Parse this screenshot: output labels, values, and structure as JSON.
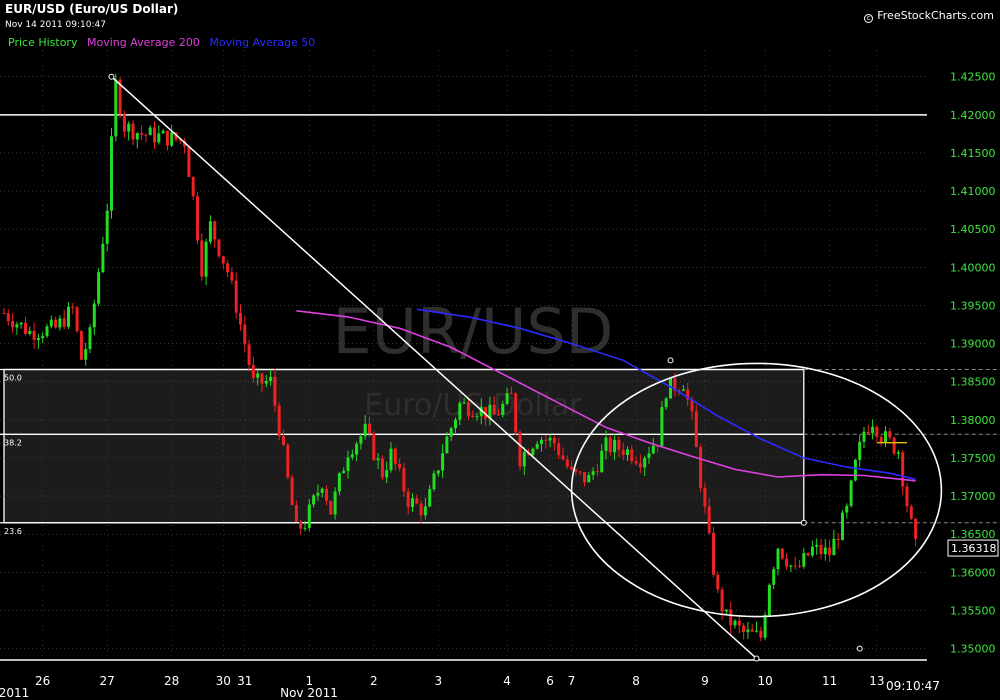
{
  "header": {
    "title": "EUR/USD (Euro/US Dollar)",
    "timestamp": "Nov 14 2011 09:10:47",
    "brand": "FreeStockCharts.com",
    "legend": [
      {
        "label": "Price History",
        "color": "#3ee63e"
      },
      {
        "label": "Moving Average 200",
        "color": "#e040e0"
      },
      {
        "label": "Moving Average 50",
        "color": "#2b2bff"
      }
    ]
  },
  "watermark": {
    "symbol": "EUR/USD",
    "name": "Euro/US Dollar"
  },
  "chart_data": {
    "type": "candlestick",
    "y_axis": {
      "ticks": [
        "1.42500",
        "1.42000",
        "1.41500",
        "1.41000",
        "1.40500",
        "1.40000",
        "1.39500",
        "1.39000",
        "1.38500",
        "1.38000",
        "1.37500",
        "1.37000",
        "1.36500",
        "1.36000",
        "1.35500",
        "1.35000"
      ],
      "range": [
        1.3485,
        1.4285
      ],
      "last_price_label": "1.36318",
      "last_price": 1.36318
    },
    "x_axis": {
      "ticks": [
        "26",
        "27",
        "28",
        "30",
        "31",
        "1",
        "2",
        "3",
        "4",
        "6",
        "7",
        "8",
        "9",
        "10",
        "11",
        "13"
      ],
      "month_labels": [
        "2011",
        "Nov 2011"
      ],
      "time_label": "09:10:47"
    },
    "fib_levels": [
      {
        "label": "50.0",
        "price": 1.3866
      },
      {
        "label": "38.2",
        "price": 1.3781
      },
      {
        "label": "23.6",
        "price": 1.3665
      }
    ],
    "horizontal_lines": [
      1.42,
      1.3485
    ],
    "trendline": {
      "from": {
        "bar": 25,
        "price": 1.425
      },
      "to": {
        "bar": 175,
        "price": 1.3487
      }
    },
    "price_path": [
      [
        0,
        1.394
      ],
      [
        6,
        1.3915
      ],
      [
        12,
        1.392
      ],
      [
        16,
        1.3945
      ],
      [
        18,
        1.388
      ],
      [
        20,
        1.391
      ],
      [
        24,
        1.408
      ],
      [
        26,
        1.424
      ],
      [
        28,
        1.4185
      ],
      [
        32,
        1.4175
      ],
      [
        38,
        1.417
      ],
      [
        42,
        1.4165
      ],
      [
        44,
        1.409
      ],
      [
        46,
        1.4
      ],
      [
        48,
        1.4055
      ],
      [
        52,
        1.3995
      ],
      [
        54,
        1.395
      ],
      [
        56,
        1.39
      ],
      [
        58,
        1.3848
      ],
      [
        62,
        1.385
      ],
      [
        64,
        1.379
      ],
      [
        66,
        1.372
      ],
      [
        68,
        1.3655
      ],
      [
        70,
        1.3665
      ],
      [
        74,
        1.372
      ],
      [
        76,
        1.368
      ],
      [
        80,
        1.376
      ],
      [
        84,
        1.3785
      ],
      [
        88,
        1.373
      ],
      [
        90,
        1.3755
      ],
      [
        94,
        1.3695
      ],
      [
        98,
        1.368
      ],
      [
        102,
        1.376
      ],
      [
        106,
        1.382
      ],
      [
        110,
        1.3815
      ],
      [
        114,
        1.3805
      ],
      [
        118,
        1.383
      ],
      [
        120,
        1.375
      ],
      [
        124,
        1.3778
      ],
      [
        128,
        1.377
      ],
      [
        132,
        1.3728
      ],
      [
        136,
        1.3722
      ],
      [
        140,
        1.3765
      ],
      [
        144,
        1.3762
      ],
      [
        148,
        1.375
      ],
      [
        152,
        1.3775
      ],
      [
        154,
        1.384
      ],
      [
        158,
        1.385
      ],
      [
        160,
        1.38
      ],
      [
        162,
        1.372
      ],
      [
        164,
        1.364
      ],
      [
        166,
        1.357
      ],
      [
        168,
        1.354
      ],
      [
        172,
        1.352
      ],
      [
        176,
        1.3515
      ],
      [
        178,
        1.359
      ],
      [
        180,
        1.3635
      ],
      [
        184,
        1.36
      ],
      [
        188,
        1.363
      ],
      [
        192,
        1.3625
      ],
      [
        196,
        1.368
      ],
      [
        198,
        1.374
      ],
      [
        200,
        1.3785
      ],
      [
        202,
        1.38
      ],
      [
        204,
        1.378
      ],
      [
        206,
        1.377
      ],
      [
        208,
        1.376
      ],
      [
        210,
        1.369
      ],
      [
        212,
        1.3632
      ]
    ],
    "series": [
      {
        "name": "Moving Average 200",
        "color": "#e040e0",
        "points": [
          [
            68,
            1.3943
          ],
          [
            80,
            1.3935
          ],
          [
            92,
            1.392
          ],
          [
            104,
            1.3895
          ],
          [
            116,
            1.386
          ],
          [
            128,
            1.3825
          ],
          [
            140,
            1.379
          ],
          [
            150,
            1.377
          ],
          [
            160,
            1.3752
          ],
          [
            170,
            1.3735
          ],
          [
            180,
            1.3725
          ],
          [
            190,
            1.3728
          ],
          [
            200,
            1.3727
          ],
          [
            212,
            1.372
          ]
        ]
      },
      {
        "name": "Moving Average 50",
        "color": "#2b2bff",
        "points": [
          [
            96,
            1.3945
          ],
          [
            108,
            1.3935
          ],
          [
            120,
            1.392
          ],
          [
            132,
            1.39
          ],
          [
            144,
            1.3878
          ],
          [
            156,
            1.384
          ],
          [
            166,
            1.3805
          ],
          [
            176,
            1.3775
          ],
          [
            186,
            1.375
          ],
          [
            196,
            1.3738
          ],
          [
            206,
            1.373
          ],
          [
            212,
            1.3722
          ]
        ]
      }
    ],
    "ellipse": {
      "center_bar": 175,
      "center_price": 1.3708,
      "radius_bars": 43,
      "radius_price": 0.0166
    },
    "box": {
      "from_bar": 0,
      "to_bar": 186,
      "top": 1.3866,
      "bottom": 1.3665
    },
    "markers": [
      {
        "bar": 25,
        "price": 1.425
      },
      {
        "bar": 175,
        "price": 1.3487
      },
      {
        "bar": 155,
        "price": 1.3878
      },
      {
        "bar": 186,
        "price": 1.3665
      },
      {
        "bar": 199,
        "price": 1.35
      }
    ]
  }
}
